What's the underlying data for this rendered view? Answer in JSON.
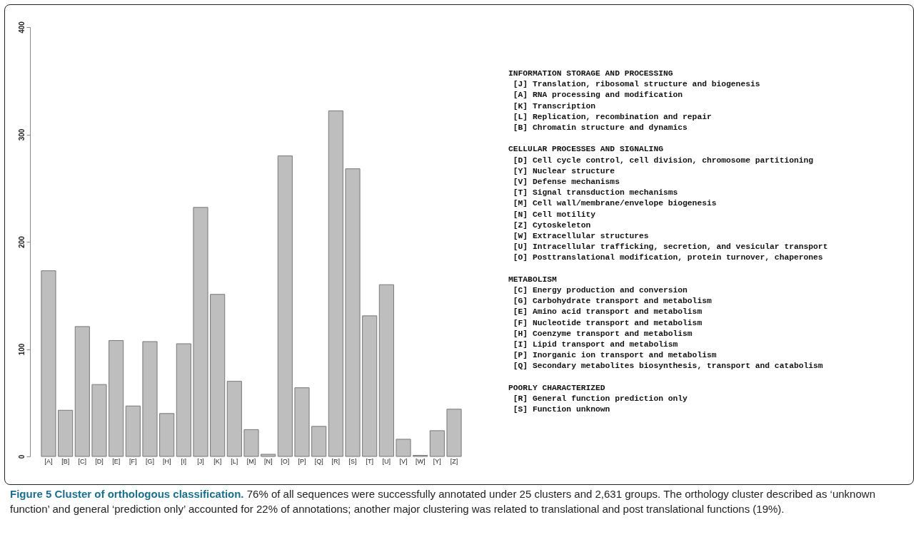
{
  "chart_data": {
    "type": "bar",
    "title": "Figure 5 Cluster of orthologous classification.",
    "subtitle": "76% of all sequences were successfully annotated under 25 clusters and 2,631 groups. The orthology cluster described as ‘unknown function’ and general ‘prediction only’ accounted for 22% of annotations; another major clustering was related to translational and post translational functions (19%).",
    "categories": [
      "[A]",
      "[B]",
      "[C]",
      "[D]",
      "[E]",
      "[F]",
      "[G]",
      "[H]",
      "[I]",
      "[J]",
      "[K]",
      "[L]",
      "[M]",
      "[N]",
      "[O]",
      "[P]",
      "[Q]",
      "[R]",
      "[S]",
      "[T]",
      "[U]",
      "[V]",
      "[W]",
      "[Y]",
      "[Z]"
    ],
    "values": [
      173,
      43,
      121,
      67,
      108,
      47,
      107,
      40,
      105,
      232,
      151,
      70,
      25,
      2,
      280,
      64,
      28,
      322,
      268,
      131,
      160,
      16,
      1,
      24,
      44
    ],
    "color": "#bebebe",
    "ylim": [
      0,
      400
    ],
    "yticks": [
      0,
      100,
      200,
      300,
      400
    ],
    "grid": false,
    "legend": false,
    "annotations": [
      "INFORMATION STORAGE AND PROCESSING\n [J] Translation, ribosomal structure and biogenesis\n [A] RNA processing and modification\n [K] Transcription\n [L] Replication, recombination and repair\n [B] Chromatin structure and dynamics",
      "CELLULAR PROCESSES AND SIGNALING\n [D] Cell cycle control, cell division, chromosome partitioning\n [Y] Nuclear structure\n [V] Defense mechanisms\n [T] Signal transduction mechanisms\n [M] Cell wall/membrane/envelope biogenesis\n [N] Cell motility\n [Z] Cytoskeleton\n [W] Extracellular structures\n [U] Intracellular trafficking, secretion, and vesicular transport\n [O] Posttranslational modification, protein turnover, chaperones",
      "METABOLISM\n [C] Energy production and conversion\n [G] Carbohydrate transport and metabolism\n [E] Amino acid transport and metabolism\n [F] Nucleotide transport and metabolism\n [H] Coenzyme transport and metabolism\n [I] Lipid transport and metabolism\n [P] Inorganic ion transport and metabolism\n [Q] Secondary metabolites biosynthesis, transport and catabolism",
      "POORLY CHARACTERIZED\n [R] General function prediction only\n [S] Function unknown"
    ]
  }
}
